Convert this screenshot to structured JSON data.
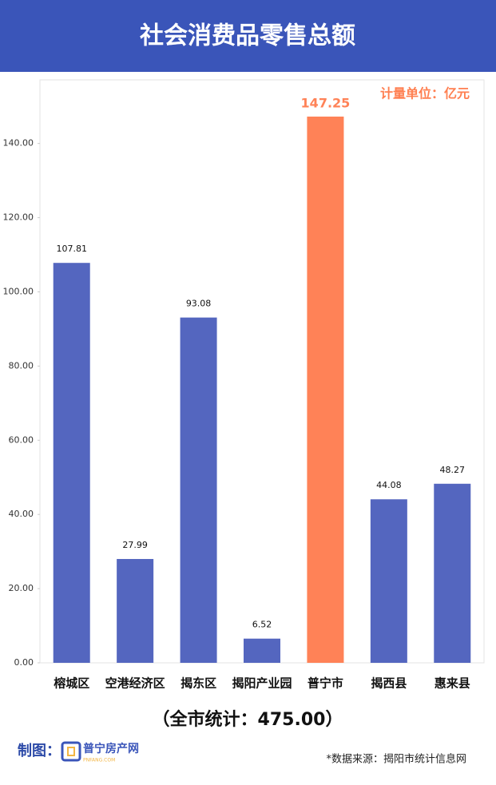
{
  "chart_data": {
    "type": "bar",
    "title": "社会消费品零售总额",
    "unit_note": "计量单位：亿元",
    "categories": [
      "榕城区",
      "空港经济区",
      "揭东区",
      "揭阳产业园",
      "普宁市",
      "揭西县",
      "惠来县"
    ],
    "values": [
      107.81,
      27.99,
      93.08,
      6.52,
      147.25,
      44.08,
      48.27
    ],
    "colors": [
      "#5466bf",
      "#5466bf",
      "#5466bf",
      "#5466bf",
      "#ff8257",
      "#5466bf",
      "#5466bf"
    ],
    "ylim": [
      0,
      155
    ],
    "yticks": [
      {
        "value": 0,
        "label": "0.00"
      },
      {
        "value": 20,
        "label": "20.00"
      },
      {
        "value": 40,
        "label": "40.00"
      },
      {
        "value": 60,
        "label": "60.00"
      },
      {
        "value": 80,
        "label": "80.00"
      },
      {
        "value": 100,
        "label": "100.00"
      },
      {
        "value": 120,
        "label": "120.00"
      },
      {
        "value": 140,
        "label": "140.00"
      }
    ],
    "total_note": "（全市统计：475.00）",
    "credit_label": "制图：",
    "logo_name": "普宁房产网",
    "logo_site": "PNFANG.COM",
    "source": "*数据来源：揭阳市统计信息网"
  }
}
